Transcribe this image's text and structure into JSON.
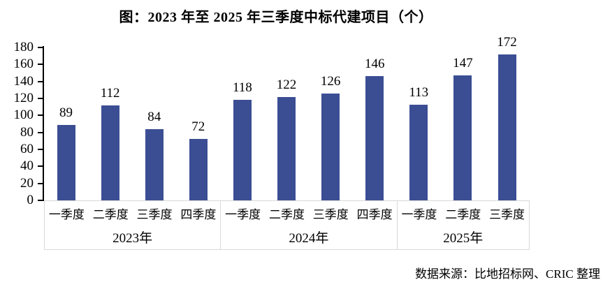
{
  "chart_data": {
    "type": "bar",
    "title": "图：2023 年至 2025 年三季度中标代建项目（个）",
    "source_note": "数据来源：比地招标网、CRIC 整理",
    "bar_color": "#3B4E94",
    "axis_color": "#000000",
    "band_border_color": "#D9D9D9",
    "ylim": [
      0,
      180
    ],
    "ytick_step": 20,
    "yticks": [
      0,
      20,
      40,
      60,
      80,
      100,
      120,
      140,
      160,
      180
    ],
    "legend": "none",
    "grid": "off",
    "groups": [
      {
        "year": "2023年",
        "categories": [
          "一季度",
          "二季度",
          "三季度",
          "四季度"
        ],
        "values": [
          89,
          112,
          84,
          72
        ]
      },
      {
        "year": "2024年",
        "categories": [
          "一季度",
          "二季度",
          "三季度",
          "四季度"
        ],
        "values": [
          118,
          122,
          126,
          146
        ]
      },
      {
        "year": "2025年",
        "categories": [
          "一季度",
          "二季度",
          "三季度"
        ],
        "values": [
          113,
          147,
          172
        ]
      }
    ]
  }
}
